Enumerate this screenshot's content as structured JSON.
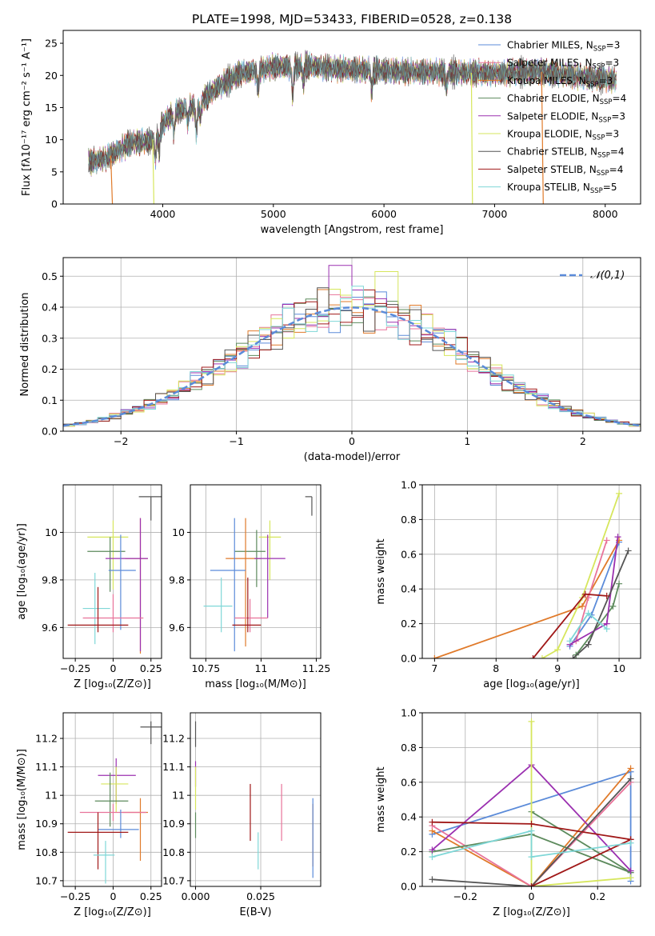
{
  "figure_title": "PLATE=1998, MJD=53433, FIBERID=0528, z=0.138",
  "colors": {
    "Chabrier MILES": "#5b8bd9",
    "Salpeter MILES": "#e8739a",
    "Kroupa MILES": "#e07a2a",
    "Chabrier ELODIE": "#5c8a5c",
    "Salpeter ELODIE": "#9b30b0",
    "Kroupa ELODIE": "#d6e65c",
    "Chabrier STELIB": "#555555",
    "Salpeter STELIB": "#a01818",
    "Kroupa STELIB": "#7fd7d7"
  },
  "chart_data": [
    {
      "id": "spectrum",
      "type": "line",
      "title": "PLATE=1998, MJD=53433, FIBERID=0528, z=0.138",
      "xlabel": "wavelength [Angstrom, rest frame]",
      "ylabel": "Flux [fλ10⁻¹⁷ erg cm⁻² s⁻¹ A⁻¹]",
      "xlim": [
        3100,
        8320
      ],
      "ylim": [
        0,
        27
      ],
      "xticks": [
        4000,
        5000,
        6000,
        7000,
        8000
      ],
      "yticks": [
        0,
        5,
        10,
        15,
        20,
        25
      ],
      "grid": false,
      "legend": "upper-right",
      "anchors": [
        [
          3330,
          6.5
        ],
        [
          3500,
          7.2
        ],
        [
          3700,
          9.5
        ],
        [
          3900,
          9.8
        ],
        [
          4000,
          12.5
        ],
        [
          4100,
          14.2
        ],
        [
          4300,
          15.3
        ],
        [
          4500,
          18.2
        ],
        [
          4700,
          20.3
        ],
        [
          5000,
          21.3
        ],
        [
          5300,
          21.5
        ],
        [
          5600,
          21.0
        ],
        [
          5900,
          20.8
        ],
        [
          6200,
          20.6
        ],
        [
          6600,
          20.5
        ],
        [
          7000,
          20.3
        ],
        [
          7400,
          20.6
        ],
        [
          7800,
          19.8
        ],
        [
          8100,
          19.3
        ]
      ],
      "dips": [
        [
          3934,
          3.5
        ],
        [
          3969,
          3.0
        ],
        [
          4102,
          3.0
        ],
        [
          4227,
          2.0
        ],
        [
          4304,
          4.0
        ],
        [
          4340,
          2.5
        ],
        [
          4861,
          3.0
        ],
        [
          5175,
          4.5
        ],
        [
          5270,
          2.5
        ],
        [
          5890,
          3.0
        ],
        [
          6563,
          2.5
        ]
      ],
      "series": [
        {
          "name": "Chabrier MILES, N_SSP=3",
          "color": "#5b8bd9"
        },
        {
          "name": "Salpeter MILES, N_SSP=3",
          "color": "#e8739a"
        },
        {
          "name": "Kroupa MILES, N_SSP=3",
          "color": "#e07a2a"
        },
        {
          "name": "Chabrier ELODIE, N_SSP=4",
          "color": "#5c8a5c"
        },
        {
          "name": "Salpeter ELODIE, N_SSP=3",
          "color": "#9b30b0"
        },
        {
          "name": "Kroupa ELODIE, N_SSP=3",
          "color": "#d6e65c"
        },
        {
          "name": "Chabrier STELIB, N_SSP=4",
          "color": "#555555"
        },
        {
          "name": "Salpeter STELIB, N_SSP=4",
          "color": "#a01818"
        },
        {
          "name": "Kroupa STELIB, N_SSP=5",
          "color": "#7fd7d7"
        }
      ],
      "drop_lines": [
        {
          "color": "#e07a2a",
          "x_from": 3530,
          "x_to": 3545
        },
        {
          "color": "#d6e65c",
          "x_from": 3910,
          "x_to": 3920
        },
        {
          "color": "#d6e65c",
          "x_from": 6790,
          "x_to": 6800
        },
        {
          "color": "#e07a2a",
          "x_from": 7425,
          "x_to": 7440
        }
      ]
    },
    {
      "id": "residuals",
      "type": "histogram",
      "xlabel": "(data-model)/error",
      "ylabel": "Normed distribution",
      "xlim": [
        -2.5,
        2.5
      ],
      "ylim": [
        0,
        0.56
      ],
      "xticks": [
        -2,
        -1,
        0,
        1,
        2
      ],
      "yticks": [
        0.0,
        0.1,
        0.2,
        0.3,
        0.4,
        0.5
      ],
      "grid": true,
      "legend": "upper-right",
      "reference_curve": {
        "name": "𝒩(0,1)",
        "color": "#5b8bd9",
        "mean": 0,
        "sigma": 1
      },
      "bin_width": 0.1,
      "notable_peaks": [
        {
          "x": -0.1,
          "y": 0.535,
          "color": "#9b30b0"
        },
        {
          "x": 0.3,
          "y": 0.515,
          "color": "#d6e65c"
        }
      ],
      "series_colors": [
        "#5b8bd9",
        "#e8739a",
        "#e07a2a",
        "#5c8a5c",
        "#9b30b0",
        "#d6e65c",
        "#555555",
        "#a01818",
        "#7fd7d7"
      ]
    },
    {
      "id": "age_vs_Z",
      "type": "scatter",
      "xlabel": "Z [log₁₀(Z/Z⊙)]",
      "ylabel": "age  [log₁₀(age/yr)]",
      "xlim": [
        -0.33,
        0.32
      ],
      "ylim": [
        9.47,
        10.2
      ],
      "xticks": [
        -0.25,
        0.0,
        0.25
      ],
      "yticks": [
        9.6,
        9.8,
        10.0
      ],
      "grid": true,
      "points": [
        {
          "color": "#555555",
          "x": 0.25,
          "y": 10.15,
          "xerr": [
            0.08,
            0.08
          ],
          "yerr": [
            0.1,
            0.0
          ]
        },
        {
          "color": "#d6e65c",
          "x": 0.0,
          "y": 9.98,
          "xerr": [
            0.17,
            0.1
          ],
          "yerr": [
            0.22,
            0.07
          ]
        },
        {
          "color": "#5c8a5c",
          "x": -0.02,
          "y": 9.92,
          "xerr": [
            0.15,
            0.1
          ],
          "yerr": [
            0.17,
            0.06
          ]
        },
        {
          "color": "#e07a2a",
          "x": 0.18,
          "y": 9.89,
          "xerr": [
            0.1,
            0.05
          ],
          "yerr": [
            0.4,
            0.17
          ]
        },
        {
          "color": "#9b30b0",
          "x": 0.18,
          "y": 9.89,
          "xerr": [
            0.23,
            0.05
          ],
          "yerr": [
            0.39,
            0.17
          ]
        },
        {
          "color": "#5b8bd9",
          "x": 0.05,
          "y": 9.84,
          "xerr": [
            0.08,
            0.1
          ],
          "yerr": [
            0.25,
            0.15
          ]
        },
        {
          "color": "#7fd7d7",
          "x": -0.12,
          "y": 9.68,
          "xerr": [
            0.08,
            0.1
          ],
          "yerr": [
            0.15,
            0.15
          ]
        },
        {
          "color": "#e8739a",
          "x": 0.0,
          "y": 9.64,
          "xerr": [
            0.2,
            0.2
          ],
          "yerr": [
            0.06,
            0.1
          ]
        },
        {
          "color": "#a01818",
          "x": -0.1,
          "y": 9.61,
          "xerr": [
            0.2,
            0.2
          ],
          "yerr": [
            0.03,
            0.16
          ]
        }
      ]
    },
    {
      "id": "age_vs_mass",
      "type": "scatter",
      "xlabel": "mass [log₁₀(M/M⊙)]",
      "ylabel": "",
      "xlim": [
        10.68,
        11.27
      ],
      "ylim": [
        9.47,
        10.2
      ],
      "xticks": [
        10.75,
        11.0,
        11.25
      ],
      "yticks": [
        9.6,
        9.8,
        10.0
      ],
      "grid": true,
      "points": [
        {
          "color": "#555555",
          "x": 11.23,
          "y": 10.15,
          "xerr": [
            0.03,
            0.0
          ],
          "yerr": [
            0.08,
            0.0
          ]
        },
        {
          "color": "#d6e65c",
          "x": 11.04,
          "y": 9.98,
          "xerr": [
            0.05,
            0.05
          ],
          "yerr": [
            0.18,
            0.07
          ]
        },
        {
          "color": "#5c8a5c",
          "x": 10.98,
          "y": 9.92,
          "xerr": [
            0.1,
            0.04
          ],
          "yerr": [
            0.15,
            0.09
          ]
        },
        {
          "color": "#e07a2a",
          "x": 10.93,
          "y": 9.89,
          "xerr": [
            0.09,
            0.07
          ],
          "yerr": [
            0.37,
            0.17
          ]
        },
        {
          "color": "#9b30b0",
          "x": 11.03,
          "y": 9.89,
          "xerr": [
            0.06,
            0.08
          ],
          "yerr": [
            0.25,
            0.1
          ]
        },
        {
          "color": "#5b8bd9",
          "x": 10.88,
          "y": 9.84,
          "xerr": [
            0.11,
            0.05
          ],
          "yerr": [
            0.34,
            0.22
          ]
        },
        {
          "color": "#7fd7d7",
          "x": 10.82,
          "y": 9.69,
          "xerr": [
            0.08,
            0.05
          ],
          "yerr": [
            0.11,
            0.12
          ]
        },
        {
          "color": "#e8739a",
          "x": 10.95,
          "y": 9.64,
          "xerr": [
            0.07,
            0.08
          ],
          "yerr": [
            0.06,
            0.08
          ]
        },
        {
          "color": "#a01818",
          "x": 10.94,
          "y": 9.61,
          "xerr": [
            0.07,
            0.06
          ],
          "yerr": [
            0.03,
            0.2
          ]
        }
      ]
    },
    {
      "id": "weight_vs_age",
      "type": "line",
      "xlabel": "age  [log₁₀(age/yr)]",
      "ylabel": "mass weight",
      "xlim": [
        6.8,
        10.35
      ],
      "ylim": [
        0,
        1.0
      ],
      "xticks": [
        7,
        8,
        9,
        10
      ],
      "yticks": [
        0.0,
        0.2,
        0.4,
        0.6,
        0.8,
        1.0
      ],
      "grid": true,
      "series": [
        {
          "color": "#5b8bd9",
          "x": [
            9.2,
            9.55,
            10.0
          ],
          "y": [
            0.07,
            0.25,
            0.67
          ]
        },
        {
          "color": "#e07a2a",
          "x": [
            7.0,
            9.4,
            10.0
          ],
          "y": [
            0.0,
            0.3,
            0.68
          ]
        },
        {
          "color": "#e8739a",
          "x": [
            9.3,
            9.5,
            9.8
          ],
          "y": [
            0.1,
            0.35,
            0.68
          ]
        },
        {
          "color": "#5c8a5c",
          "x": [
            9.3,
            9.9,
            10.0
          ],
          "y": [
            0.02,
            0.3,
            0.43
          ]
        },
        {
          "color": "#9b30b0",
          "x": [
            9.2,
            9.8,
            9.98
          ],
          "y": [
            0.08,
            0.2,
            0.7
          ]
        },
        {
          "color": "#d6e65c",
          "x": [
            8.75,
            9.0,
            9.4,
            10.0
          ],
          "y": [
            0.0,
            0.05,
            0.35,
            0.95
          ]
        },
        {
          "color": "#555555",
          "x": [
            9.25,
            9.5,
            10.15
          ],
          "y": [
            0.0,
            0.08,
            0.62
          ]
        },
        {
          "color": "#a01818",
          "x": [
            8.6,
            9.45,
            9.8
          ],
          "y": [
            0.0,
            0.37,
            0.36
          ]
        },
        {
          "color": "#7fd7d7",
          "x": [
            9.2,
            9.5,
            9.8
          ],
          "y": [
            0.1,
            0.26,
            0.17
          ]
        }
      ]
    },
    {
      "id": "mass_vs_Z",
      "type": "scatter",
      "xlabel": "Z [log₁₀(Z/Z⊙)]",
      "ylabel": "mass [log₁₀(M/M⊙)]",
      "xlim": [
        -0.33,
        0.32
      ],
      "ylim": [
        10.68,
        11.29
      ],
      "xticks": [
        -0.25,
        0.0,
        0.25
      ],
      "yticks": [
        10.7,
        10.8,
        10.9,
        11.0,
        11.1,
        11.2
      ],
      "grid": true,
      "points": [
        {
          "color": "#555555",
          "x": 0.25,
          "y": 11.24,
          "xerr": [
            0.07,
            0.07
          ],
          "yerr": [
            0.06,
            0.02
          ]
        },
        {
          "color": "#9b30b0",
          "x": 0.02,
          "y": 11.07,
          "xerr": [
            0.12,
            0.13
          ],
          "yerr": [
            0.1,
            0.06
          ]
        },
        {
          "color": "#d6e65c",
          "x": 0.02,
          "y": 11.04,
          "xerr": [
            0.1,
            0.08
          ],
          "yerr": [
            0.1,
            0.06
          ]
        },
        {
          "color": "#5c8a5c",
          "x": -0.02,
          "y": 10.98,
          "xerr": [
            0.1,
            0.12
          ],
          "yerr": [
            0.09,
            0.1
          ]
        },
        {
          "color": "#e07a2a",
          "x": 0.18,
          "y": 10.94,
          "xerr": [
            0.12,
            0.05
          ],
          "yerr": [
            0.17,
            0.05
          ]
        },
        {
          "color": "#e8739a",
          "x": 0.0,
          "y": 10.94,
          "xerr": [
            0.22,
            0.22
          ],
          "yerr": [
            0.03,
            0.03
          ]
        },
        {
          "color": "#5b8bd9",
          "x": 0.05,
          "y": 10.88,
          "xerr": [
            0.15,
            0.12
          ],
          "yerr": [
            0.03,
            0.07
          ]
        },
        {
          "color": "#a01818",
          "x": -0.1,
          "y": 10.87,
          "xerr": [
            0.2,
            0.2
          ],
          "yerr": [
            0.13,
            0.07
          ]
        },
        {
          "color": "#7fd7d7",
          "x": -0.05,
          "y": 10.79,
          "xerr": [
            0.08,
            0.06
          ],
          "yerr": [
            0.1,
            0.05
          ]
        }
      ]
    },
    {
      "id": "mass_vs_EBV",
      "type": "scatter",
      "xlabel": "E(B-V)",
      "ylabel": "",
      "xlim": [
        -0.002,
        0.048
      ],
      "ylim": [
        10.68,
        11.29
      ],
      "xticks": [
        0.0,
        0.025
      ],
      "xtick_labels": [
        "0.000",
        "0.025"
      ],
      "yticks": [
        10.7,
        10.8,
        10.9,
        11.0,
        11.1,
        11.2
      ],
      "grid": true,
      "points": [
        {
          "color": "#555555",
          "x": 0.0,
          "y": 11.22,
          "yerr": [
            0.05,
            0.04
          ]
        },
        {
          "color": "#9b30b0",
          "x": 0.0,
          "y": 11.1,
          "yerr": [
            0.07,
            0.02
          ]
        },
        {
          "color": "#d6e65c",
          "x": 0.0,
          "y": 11.0,
          "yerr": [
            0.05,
            0.1
          ]
        },
        {
          "color": "#5c8a5c",
          "x": 0.0,
          "y": 10.9,
          "yerr": [
            0.05,
            0.04
          ]
        },
        {
          "color": "#a01818",
          "x": 0.021,
          "y": 10.94,
          "yerr": [
            0.1,
            0.1
          ]
        },
        {
          "color": "#e8739a",
          "x": 0.033,
          "y": 10.94,
          "yerr": [
            0.1,
            0.1
          ]
        },
        {
          "color": "#7fd7d7",
          "x": 0.024,
          "y": 10.8,
          "yerr": [
            0.06,
            0.07
          ]
        },
        {
          "color": "#e07a2a",
          "x": 0.045,
          "y": 10.86,
          "yerr": [
            0.11,
            0.11
          ]
        },
        {
          "color": "#5b8bd9",
          "x": 0.045,
          "y": 10.85,
          "yerr": [
            0.14,
            0.14
          ]
        }
      ]
    },
    {
      "id": "weight_vs_Z",
      "type": "line",
      "xlabel": "Z [log₁₀(Z/Z⊙)]",
      "ylabel": "mass weight",
      "xlim": [
        -0.33,
        0.33
      ],
      "ylim": [
        0,
        1.0
      ],
      "xticks": [
        -0.2,
        0.0,
        0.2
      ],
      "yticks": [
        0.0,
        0.2,
        0.4,
        0.6,
        0.8,
        1.0
      ],
      "grid": true,
      "series": [
        {
          "color": "#5b8bd9",
          "x": [
            -0.3,
            0.3,
            0.3
          ],
          "y": [
            0.3,
            0.66,
            0.03
          ]
        },
        {
          "color": "#e07a2a",
          "x": [
            -0.3,
            0.0,
            0.3
          ],
          "y": [
            0.32,
            0.0,
            0.68
          ]
        },
        {
          "color": "#e8739a",
          "x": [
            -0.3,
            0.0,
            0.3
          ],
          "y": [
            0.35,
            0.0,
            0.6
          ]
        },
        {
          "color": "#5c8a5c",
          "x": [
            -0.3,
            0.0,
            0.3
          ],
          "y": [
            0.2,
            0.3,
            0.08
          ]
        },
        {
          "color": "#5c8a5c",
          "x": [
            0.0,
            0.3
          ],
          "y": [
            0.43,
            0.08
          ]
        },
        {
          "color": "#9b30b0",
          "x": [
            -0.3,
            0.0,
            0.3
          ],
          "y": [
            0.21,
            0.7,
            0.09
          ]
        },
        {
          "color": "#d6e65c",
          "x": [
            0.0,
            0.0,
            0.3
          ],
          "y": [
            0.95,
            0.0,
            0.05
          ]
        },
        {
          "color": "#555555",
          "x": [
            -0.3,
            0.0,
            0.3
          ],
          "y": [
            0.04,
            0.0,
            0.62
          ]
        },
        {
          "color": "#a01818",
          "x": [
            -0.3,
            0.0,
            0.3
          ],
          "y": [
            0.37,
            0.36,
            0.27
          ]
        },
        {
          "color": "#a01818",
          "x": [
            0.0,
            0.3
          ],
          "y": [
            0.0,
            0.27
          ]
        },
        {
          "color": "#7fd7d7",
          "x": [
            -0.3,
            0.0,
            0.0,
            0.3
          ],
          "y": [
            0.17,
            0.32,
            0.17,
            0.25
          ]
        }
      ]
    }
  ]
}
